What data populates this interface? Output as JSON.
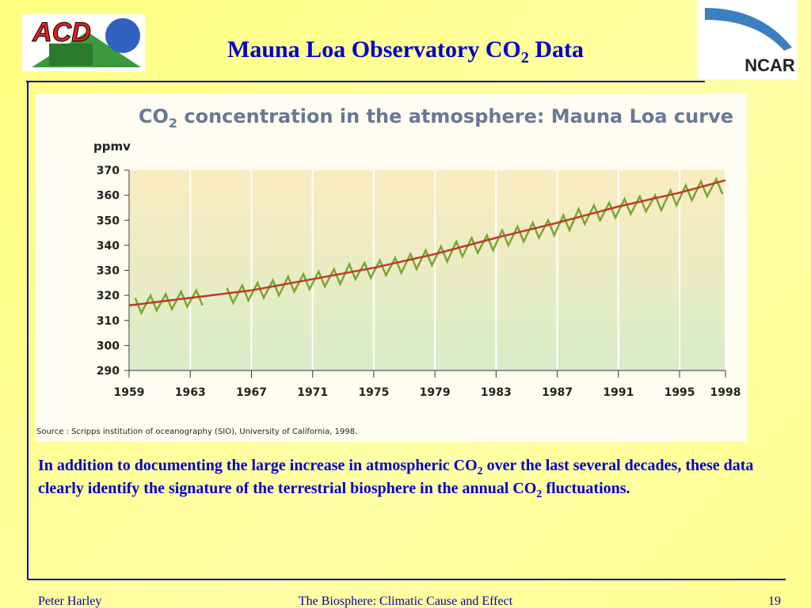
{
  "slide": {
    "title": [
      "Mauna Loa Observatory CO",
      "2",
      " Data"
    ],
    "logo_left": "ACD",
    "logo_right": "NCAR",
    "paragraph": [
      "In addition to documenting the large increase in atmospheric CO",
      "2",
      " over the last several decades, these data clearly identify the signature of the terrestrial biosphere in the annual CO",
      "2",
      " fluctuations."
    ],
    "footer_left": "Peter Harley",
    "footer_center": "The Biosphere: Climatic Cause and Effect",
    "footer_right": "19"
  },
  "chart_data": {
    "type": "line",
    "title": [
      "CO",
      "2",
      " concentration in the atmosphere: Mauna Loa curve"
    ],
    "y_label": "ppmv",
    "source": "Source : Scripps institution of oceanography (SIO), University of California, 1998.",
    "xlim": [
      1959,
      1998
    ],
    "xticks": [
      1959,
      1963,
      1967,
      1971,
      1975,
      1979,
      1983,
      1987,
      1991,
      1995,
      1998
    ],
    "ylim": [
      290,
      370
    ],
    "yticks": [
      290,
      300,
      310,
      320,
      330,
      340,
      350,
      360,
      370
    ],
    "grid": true,
    "series": [
      {
        "color": "#7aa630",
        "x": [
          1959.4,
          1959.8,
          1960.4,
          1960.8,
          1961.4,
          1961.8,
          1962.4,
          1962.8,
          1963.4,
          1963.8,
          1964.4,
          1964.8,
          1965.4,
          1965.8,
          1966.4,
          1966.8,
          1967.4,
          1967.8,
          1968.4,
          1968.8,
          1969.4,
          1969.8,
          1970.4,
          1970.8,
          1971.4,
          1971.8,
          1972.4,
          1972.8,
          1973.4,
          1973.8,
          1974.4,
          1974.8,
          1975.4,
          1975.8,
          1976.4,
          1976.8,
          1977.4,
          1977.8,
          1978.4,
          1978.8,
          1979.4,
          1979.8,
          1980.4,
          1980.8,
          1981.4,
          1981.8,
          1982.4,
          1982.8,
          1983.4,
          1983.8,
          1984.4,
          1984.8,
          1985.4,
          1985.8,
          1986.4,
          1986.8,
          1987.4,
          1987.8,
          1988.4,
          1988.8,
          1989.4,
          1989.8,
          1990.4,
          1990.8,
          1991.4,
          1991.8,
          1992.4,
          1992.8,
          1993.4,
          1993.8,
          1994.4,
          1994.8,
          1995.4,
          1995.8,
          1996.4,
          1996.8,
          1997.4,
          1997.8
        ],
        "values": [
          319,
          313,
          320,
          314,
          320.5,
          314.5,
          321.5,
          315.5,
          322,
          316,
          null,
          null,
          323,
          317,
          324,
          318,
          325,
          319,
          326,
          320,
          327.5,
          321.5,
          328.5,
          322.5,
          329.5,
          323.5,
          330.5,
          324.5,
          332.5,
          326.5,
          333,
          327,
          334,
          328,
          335,
          329,
          336.5,
          330.5,
          338,
          332,
          339.5,
          333.5,
          341.5,
          335.5,
          343,
          337,
          344,
          338,
          346,
          340,
          347.5,
          341.5,
          349,
          343,
          350,
          344,
          352,
          346,
          354.5,
          348.5,
          356,
          350,
          357,
          351,
          358.5,
          352.5,
          359.5,
          353.5,
          360,
          354,
          362,
          356,
          364,
          358,
          365.5,
          359.5,
          366.5,
          360.5
        ]
      },
      {
        "color": "#c0392b",
        "x": [
          1959,
          1963,
          1967,
          1971,
          1975,
          1979,
          1983,
          1987,
          1991,
          1995,
          1998
        ],
        "values": [
          316,
          319,
          322,
          326.5,
          331,
          336.5,
          343,
          349,
          355.5,
          361,
          366
        ]
      }
    ]
  }
}
